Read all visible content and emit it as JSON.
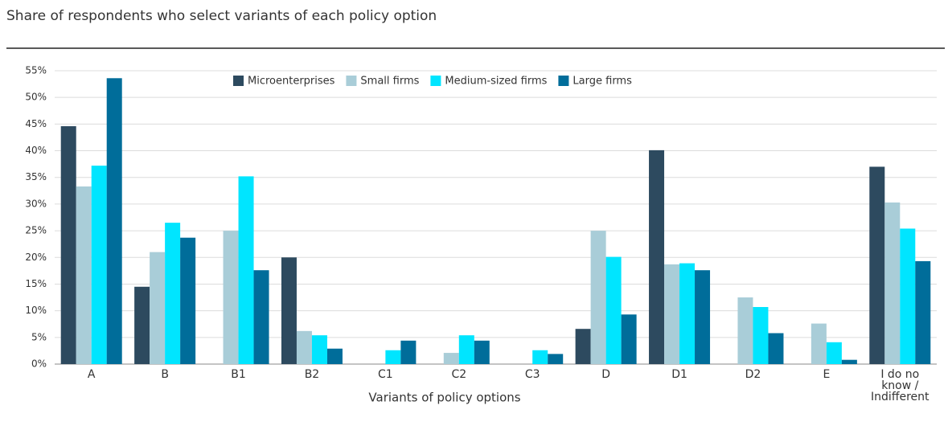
{
  "chart_data": {
    "type": "bar",
    "title": "Share of respondents who select variants of each policy option",
    "x_label": "Variants of policy options",
    "categories": [
      "A",
      "B",
      "B1",
      "B2",
      "C1",
      "C2",
      "C3",
      "D",
      "D1",
      "D2",
      "E",
      "I do no know / Indifferent"
    ],
    "series": [
      {
        "name": "Microenterprises",
        "color": "#2d4a5f",
        "values": [
          44.6,
          14.5,
          0,
          20,
          0,
          0,
          0,
          6.6,
          40.1,
          0,
          0,
          37
        ]
      },
      {
        "name": "Small firms",
        "color": "#a9cdd8",
        "values": [
          33.3,
          21,
          25,
          6.2,
          0,
          2.1,
          0,
          25,
          18.7,
          12.5,
          7.6,
          30.3
        ]
      },
      {
        "name": "Medium-sized firms",
        "color": "#00e5ff",
        "values": [
          37.2,
          26.5,
          35.2,
          5.4,
          2.6,
          5.4,
          2.6,
          20.1,
          18.9,
          10.7,
          4.1,
          25.4
        ]
      },
      {
        "name": "Large firms",
        "color": "#006d9a",
        "values": [
          53.6,
          23.7,
          17.6,
          2.9,
          4.4,
          4.4,
          1.9,
          9.3,
          17.6,
          5.8,
          0.8,
          19.3
        ]
      }
    ],
    "ylim": [
      0,
      55
    ],
    "yticks": [
      {
        "value": 0,
        "label": "0%"
      },
      {
        "value": 5,
        "label": "5%"
      },
      {
        "value": 10,
        "label": "10%"
      },
      {
        "value": 15,
        "label": "15%"
      },
      {
        "value": 20,
        "label": "20%"
      },
      {
        "value": 25,
        "label": "25%"
      },
      {
        "value": 30,
        "label": "30%"
      },
      {
        "value": 35,
        "label": "35%"
      },
      {
        "value": 40,
        "label": "40%"
      },
      {
        "value": 45,
        "label": "45%"
      },
      {
        "value": 50,
        "label": "50%"
      },
      {
        "value": 55,
        "label": "55%"
      }
    ],
    "grid": true
  }
}
